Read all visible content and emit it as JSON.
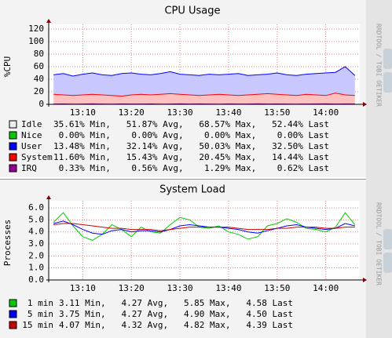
{
  "chart_data": [
    {
      "type": "area",
      "title": "CPU Usage",
      "ylabel": "%CPU",
      "watermark": "RRDTOOL / TOBI OETIKER",
      "x": [
        "13:04",
        "13:06",
        "13:08",
        "13:10",
        "13:12",
        "13:14",
        "13:16",
        "13:18",
        "13:20",
        "13:22",
        "13:24",
        "13:26",
        "13:28",
        "13:30",
        "13:32",
        "13:34",
        "13:36",
        "13:38",
        "13:40",
        "13:42",
        "13:44",
        "13:46",
        "13:48",
        "13:50",
        "13:52",
        "13:54",
        "13:56",
        "13:58",
        "14:00",
        "14:02",
        "14:04",
        "14:06"
      ],
      "xlim": [
        "13:03",
        "14:07"
      ],
      "xticks": [
        "13:10",
        "13:20",
        "13:30",
        "13:40",
        "13:50",
        "14:00"
      ],
      "ylim": [
        0,
        120
      ],
      "yticks": [
        0,
        20,
        40,
        60,
        80,
        100,
        120
      ],
      "grid": true,
      "series": [
        {
          "name": "Idle",
          "color": "#eeeeee",
          "stats": "35.61% Min,   51.87% Avg,   68.57% Max,   52.44% Last"
        },
        {
          "name": "Nice",
          "color": "#00cc00",
          "stats": " 0.00% Min,    0.00% Avg,    0.00% Max,    0.00% Last",
          "values": [
            0,
            0,
            0,
            0,
            0,
            0,
            0,
            0,
            0,
            0,
            0,
            0,
            0,
            0,
            0,
            0,
            0,
            0,
            0,
            0,
            0,
            0,
            0,
            0,
            0,
            0,
            0,
            0,
            0,
            0,
            0,
            0
          ]
        },
        {
          "name": "User",
          "color": "#0000ff",
          "fill": "#c8c8ff",
          "stack": true,
          "stats": "13.48% Min,   32.14% Avg,   50.03% Max,   32.50% Last",
          "values": [
            31,
            34,
            31,
            33,
            34,
            32,
            32,
            36,
            35,
            32,
            32,
            33,
            35,
            32,
            32,
            32,
            33,
            31,
            33,
            35,
            31,
            31,
            31,
            34,
            32,
            32,
            32,
            34,
            36,
            33,
            45,
            32
          ]
        },
        {
          "name": "System",
          "color": "#ff0000",
          "fill": "#ffc0c0",
          "stack": true,
          "stats": "11.60% Min,   15.43% Avg,   20.45% Max,   14.44% Last",
          "values": [
            16,
            15,
            14,
            15,
            16,
            15,
            14,
            13,
            15,
            16,
            15,
            16,
            17,
            16,
            15,
            14,
            15,
            16,
            15,
            14,
            15,
            16,
            17,
            16,
            15,
            14,
            16,
            15,
            14,
            18,
            15,
            14
          ]
        },
        {
          "name": "IRQ",
          "color": "#990099",
          "stats": " 0.33% Min,    0.56% Avg,    1.29% Max,    0.62% Last",
          "values": [
            0.5,
            0.6,
            0.4,
            0.5,
            0.7,
            0.5,
            0.4,
            0.6,
            0.5,
            0.5,
            0.6,
            0.4,
            0.5,
            0.7,
            0.5,
            0.6,
            0.5,
            0.4,
            0.6,
            0.5,
            0.5,
            0.7,
            0.5,
            0.6,
            0.5,
            0.4,
            0.5,
            0.6,
            0.7,
            0.5,
            0.6,
            0.6
          ]
        }
      ]
    },
    {
      "type": "line",
      "title": "System Load",
      "ylabel": "Processes",
      "watermark": "RRDTOOL / TOBI OETIKER",
      "x": [
        "13:04",
        "13:06",
        "13:08",
        "13:10",
        "13:12",
        "13:14",
        "13:16",
        "13:18",
        "13:20",
        "13:22",
        "13:24",
        "13:26",
        "13:28",
        "13:30",
        "13:32",
        "13:34",
        "13:36",
        "13:38",
        "13:40",
        "13:42",
        "13:44",
        "13:46",
        "13:48",
        "13:50",
        "13:52",
        "13:54",
        "13:56",
        "13:58",
        "14:00",
        "14:02",
        "14:04",
        "14:06"
      ],
      "xlim": [
        "13:03",
        "14:07"
      ],
      "xticks": [
        "13:10",
        "13:20",
        "13:30",
        "13:40",
        "13:50",
        "14:00"
      ],
      "ylim": [
        0,
        6.2
      ],
      "yticks": [
        {
          "value": 0,
          "label": "0.0"
        },
        {
          "value": 1,
          "label": "1.0"
        },
        {
          "value": 2,
          "label": "2.0"
        },
        {
          "value": 3,
          "label": "3.0"
        },
        {
          "value": 4,
          "label": "4.0"
        },
        {
          "value": 5,
          "label": "5.0"
        },
        {
          "value": 6,
          "label": "6.0"
        }
      ],
      "grid": true,
      "series": [
        {
          "name": "1 min",
          "color": "#00cc00",
          "stats": "3.11 Min,   4.27 Avg,   5.85 Max,   4.58 Last",
          "values": [
            4.8,
            5.6,
            4.5,
            3.6,
            3.3,
            3.8,
            4.6,
            4.2,
            3.6,
            4.4,
            4.0,
            3.9,
            4.6,
            5.2,
            5.0,
            4.4,
            4.3,
            4.5,
            4.0,
            3.8,
            3.4,
            3.6,
            4.5,
            4.7,
            5.1,
            4.8,
            4.3,
            4.2,
            4.0,
            4.4,
            5.6,
            4.6
          ]
        },
        {
          "name": "5 min",
          "color": "#0000ff",
          "stats": "3.75 Min,   4.27 Avg,   4.90 Max,   4.50 Last",
          "values": [
            4.7,
            4.9,
            4.6,
            4.2,
            3.9,
            3.8,
            4.1,
            4.2,
            4.0,
            4.1,
            4.1,
            4.0,
            4.2,
            4.5,
            4.6,
            4.5,
            4.4,
            4.4,
            4.3,
            4.2,
            4.0,
            3.9,
            4.1,
            4.3,
            4.5,
            4.6,
            4.4,
            4.3,
            4.2,
            4.3,
            4.7,
            4.5
          ]
        },
        {
          "name": "15 min",
          "color": "#cc0000",
          "stats": "4.07 Min,   4.32 Avg,   4.82 Max,   4.39 Last",
          "values": [
            4.6,
            4.7,
            4.7,
            4.6,
            4.5,
            4.4,
            4.3,
            4.3,
            4.2,
            4.2,
            4.2,
            4.1,
            4.2,
            4.3,
            4.4,
            4.4,
            4.4,
            4.4,
            4.4,
            4.3,
            4.2,
            4.2,
            4.2,
            4.3,
            4.3,
            4.4,
            4.4,
            4.4,
            4.3,
            4.3,
            4.4,
            4.4
          ]
        }
      ]
    }
  ]
}
